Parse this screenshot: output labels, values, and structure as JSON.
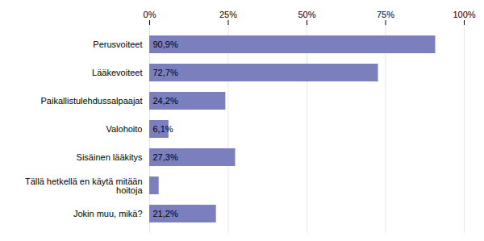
{
  "chart_data": {
    "type": "bar",
    "orientation": "horizontal",
    "categories": [
      "Jokin muu, mikä?",
      "Tällä hetkellä en käytä mitään\nhoitoja",
      "Sisäinen lääkitys",
      "Valohoito",
      "Paikallistulehdussalpaajat",
      "Lääkevoiteet",
      "Perusvoiteet"
    ],
    "values": [
      21.2,
      3.0,
      27.3,
      6.1,
      24.2,
      72.7,
      90.9
    ],
    "value_labels": [
      "21,2%",
      null,
      "27,3%",
      "6,1%",
      "24,2%",
      "72,7%",
      "90,9%"
    ],
    "data_labels": true,
    "color": "#7b7fbe",
    "xlim": [
      0,
      100
    ],
    "xticks": [
      {
        "value": 0,
        "label": "0%"
      },
      {
        "value": 25,
        "label": "25%"
      },
      {
        "value": 50,
        "label": "50%"
      },
      {
        "value": 75,
        "label": "75%"
      },
      {
        "value": 100,
        "label": "100%"
      }
    ],
    "grid": true
  }
}
